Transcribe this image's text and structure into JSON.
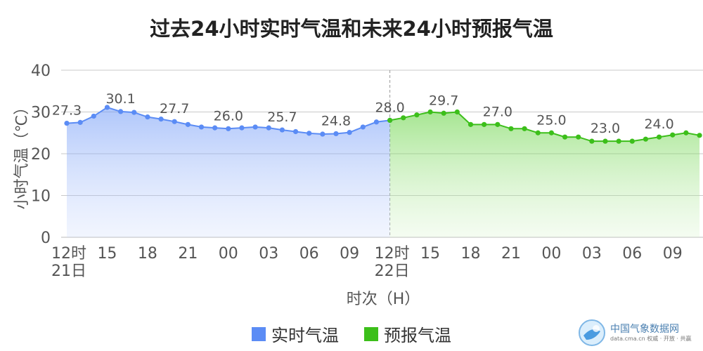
{
  "title": "过去24小时实时气温和未来24小时预报气温",
  "chart_data": {
    "type": "area",
    "title": "过去24小时实时气温和未来24小时预报气温",
    "xlabel": "时次（H）",
    "ylabel": "小时气温（℃）",
    "ylim": [
      0,
      40
    ],
    "yticks": [
      0,
      10,
      20,
      30,
      40
    ],
    "grid": true,
    "legend_position": "bottom",
    "x_tick_labels": [
      {
        "index": 0,
        "text": "12时"
      },
      {
        "index": 3,
        "text": "15"
      },
      {
        "index": 6,
        "text": "18"
      },
      {
        "index": 9,
        "text": "21"
      },
      {
        "index": 12,
        "text": "00"
      },
      {
        "index": 15,
        "text": "03"
      },
      {
        "index": 18,
        "text": "06"
      },
      {
        "index": 21,
        "text": "09"
      },
      {
        "index": 24,
        "text": "12时"
      },
      {
        "index": 27,
        "text": "15"
      },
      {
        "index": 30,
        "text": "18"
      },
      {
        "index": 33,
        "text": "21"
      },
      {
        "index": 36,
        "text": "00"
      },
      {
        "index": 39,
        "text": "03"
      },
      {
        "index": 42,
        "text": "06"
      },
      {
        "index": 45,
        "text": "09"
      }
    ],
    "date_labels": [
      {
        "index": 0,
        "text": "21日"
      },
      {
        "index": 24,
        "text": "22日"
      }
    ],
    "series": [
      {
        "name": "实时气温",
        "color": "#5b8cf5",
        "start_index": 0,
        "values": [
          27.3,
          27.5,
          29.0,
          31.1,
          30.1,
          29.9,
          28.8,
          28.3,
          27.7,
          27.0,
          26.4,
          26.2,
          26.0,
          26.2,
          26.4,
          26.2,
          25.7,
          25.3,
          24.9,
          24.7,
          24.8,
          25.1,
          26.4,
          27.6,
          28.0
        ],
        "data_labels": [
          {
            "index": 0,
            "text": "27.3"
          },
          {
            "index": 4,
            "text": "30.1"
          },
          {
            "index": 8,
            "text": "27.7"
          },
          {
            "index": 12,
            "text": "26.0"
          },
          {
            "index": 16,
            "text": "25.7"
          },
          {
            "index": 20,
            "text": "24.8"
          },
          {
            "index": 24,
            "text": "28.0"
          }
        ]
      },
      {
        "name": "预报气温",
        "color": "#3cbf1a",
        "start_index": 24,
        "values": [
          28.0,
          28.6,
          29.3,
          30.0,
          29.7,
          30.0,
          27.0,
          27.0,
          27.0,
          26.0,
          26.0,
          25.0,
          25.0,
          24.0,
          24.0,
          23.0,
          23.0,
          23.0,
          23.0,
          23.5,
          24.0,
          24.5,
          25.0,
          24.4
        ],
        "data_labels": [
          {
            "index": 28,
            "text": "29.7"
          },
          {
            "index": 32,
            "text": "27.0"
          },
          {
            "index": 36,
            "text": "25.0"
          },
          {
            "index": 40,
            "text": "23.0"
          },
          {
            "index": 44,
            "text": "24.0"
          }
        ]
      }
    ]
  },
  "legend": {
    "items": [
      {
        "label": "实时气温",
        "color": "#5b8cf5"
      },
      {
        "label": "预报气温",
        "color": "#3cbf1a"
      }
    ]
  },
  "watermark": {
    "name": "中国气象数据网",
    "sub": "data.cma.cn 权威 · 开放 · 共赢"
  }
}
